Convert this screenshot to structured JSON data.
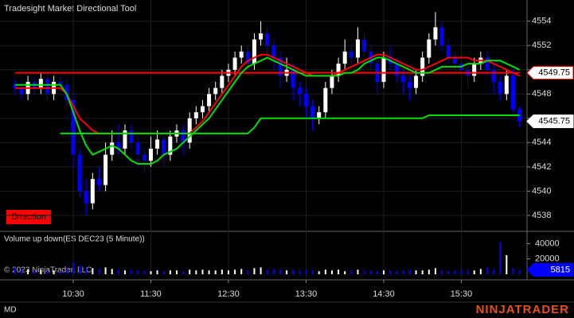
{
  "chart_data": {
    "type": "candlestick",
    "title": "Tradesight Market Directional Tool",
    "badge": "Direction",
    "volume_title": "Volume up down(ES DEC23 (5 Minute))",
    "copyright": "© 2023 NinjaTrader, LLC",
    "footer_left": "MD",
    "brand": "NINJATRADER",
    "up_color": "#ffffff",
    "down_color": "#0000ff",
    "x": [
      585,
      590,
      595,
      600,
      605,
      610,
      615,
      620,
      625,
      630,
      635,
      640,
      645,
      650,
      655,
      660,
      665,
      670,
      675,
      680,
      685,
      690,
      695,
      700,
      705,
      710,
      715,
      720,
      725,
      730,
      735,
      740,
      745,
      750,
      755,
      760,
      765,
      770,
      775,
      780,
      785,
      790,
      795,
      800,
      805,
      810,
      815,
      820,
      825,
      830,
      835,
      840,
      845,
      850,
      855,
      860,
      865,
      870,
      875,
      880,
      885,
      890,
      895,
      900,
      905,
      910,
      915,
      920,
      925,
      930,
      935,
      940,
      945,
      950,
      955,
      960,
      965,
      970,
      975
    ],
    "open": [
      4548.75,
      4548.5,
      4548,
      4549,
      4548.5,
      4549.25,
      4548,
      4549,
      4548.75,
      4547.5,
      4543,
      4540,
      4539,
      4541,
      4540.5,
      4543,
      4544,
      4543.5,
      4545,
      4544,
      4543,
      4542.5,
      4543.5,
      4544.25,
      4543,
      4544.5,
      4545,
      4544,
      4546,
      4546.5,
      4547,
      4548,
      4548.5,
      4549.5,
      4550,
      4551,
      4551.5,
      4550.5,
      4552.5,
      4553,
      4552,
      4551,
      4549.5,
      4550,
      4548.5,
      4548,
      4547,
      4546,
      4546.5,
      4548.5,
      4549.5,
      4550.5,
      4551.5,
      4551,
      4552.5,
      4551.5,
      4550.5,
      4549,
      4551,
      4550.5,
      4549.5,
      4549,
      4548.5,
      4549.5,
      4551,
      4552.5,
      4553.5,
      4552,
      4551,
      4550.5,
      4550,
      4549.5,
      4550.5,
      4551,
      4550,
      4549,
      4548,
      4549.5,
      4546.75
    ],
    "high": [
      4549.25,
      4549,
      4549.5,
      4549.5,
      4549.75,
      4549.75,
      4549.5,
      4549.5,
      4549.25,
      4548,
      4543.5,
      4541,
      4541.5,
      4542,
      4544,
      4545,
      4545.5,
      4545.5,
      4545.5,
      4544.5,
      4543.5,
      4544.5,
      4545,
      4544.5,
      4545,
      4545.5,
      4545.5,
      4546.5,
      4547,
      4547.5,
      4548.5,
      4549,
      4550,
      4550.5,
      4551.5,
      4552,
      4552,
      4553,
      4554,
      4553.5,
      4552.5,
      4551.5,
      4551,
      4550.5,
      4549,
      4548.5,
      4547.5,
      4547,
      4549,
      4550,
      4551,
      4552.5,
      4552,
      4553.5,
      4553,
      4552,
      4551,
      4551.5,
      4552,
      4551,
      4550,
      4549.5,
      4550,
      4551.5,
      4553,
      4554.75,
      4554,
      4552.5,
      4551.5,
      4551,
      4550.5,
      4551,
      4551.5,
      4551.5,
      4550.5,
      4549.5,
      4550,
      4550,
      4547
    ],
    "low": [
      4548,
      4547.5,
      4547.5,
      4548,
      4548,
      4547.5,
      4547.5,
      4548.25,
      4547,
      4542,
      4539.5,
      4538,
      4538.5,
      4540,
      4540,
      4542.5,
      4543,
      4543,
      4543.5,
      4542,
      4541.5,
      4542,
      4543,
      4542,
      4542.5,
      4544,
      4543,
      4543.5,
      4545.5,
      4546,
      4546.5,
      4547.5,
      4548,
      4549,
      4549.5,
      4550.5,
      4550,
      4550,
      4552,
      4551,
      4550,
      4548.5,
      4549,
      4547.5,
      4547,
      4546,
      4545,
      4545.5,
      4546,
      4548,
      4549,
      4550,
      4550.5,
      4550.5,
      4551,
      4550,
      4548,
      4548.5,
      4550,
      4549,
      4548,
      4547.5,
      4548,
      4549,
      4550.5,
      4552,
      4551.5,
      4550.5,
      4550,
      4549.5,
      4548.5,
      4549,
      4550,
      4549.5,
      4548,
      4547.5,
      4547.5,
      4546.5,
      4545.25
    ],
    "close": [
      4548.5,
      4548,
      4549,
      4548.5,
      4549.25,
      4548,
      4549,
      4548.75,
      4547.5,
      4543,
      4540,
      4539,
      4541,
      4540.5,
      4543,
      4544,
      4543.5,
      4545,
      4544,
      4543,
      4542.5,
      4543.5,
      4544.25,
      4543,
      4544.5,
      4545,
      4544,
      4546,
      4546.5,
      4547,
      4548,
      4548.5,
      4549.5,
      4550,
      4551,
      4551.5,
      4550.5,
      4552.5,
      4553,
      4552,
      4551,
      4549.5,
      4550,
      4548.5,
      4548,
      4547,
      4546,
      4546.5,
      4548.5,
      4549.5,
      4550.5,
      4551.5,
      4551,
      4552.5,
      4551.5,
      4550.5,
      4549,
      4551,
      4550.5,
      4549.5,
      4549,
      4548.5,
      4549.5,
      4551,
      4552.5,
      4553.5,
      4552,
      4551,
      4550.5,
      4550,
      4549.5,
      4550.5,
      4551,
      4550,
      4549,
      4548,
      4549.5,
      4546.75,
      4545.75
    ],
    "volume": [
      9000,
      7000,
      6000,
      5000,
      6000,
      5000,
      5000,
      4000,
      8000,
      15000,
      12000,
      9000,
      8000,
      7000,
      9000,
      7000,
      6000,
      5000,
      6000,
      5000,
      5000,
      4000,
      5000,
      4000,
      5000,
      5000,
      4000,
      6000,
      5000,
      6000,
      5000,
      5000,
      6000,
      5000,
      6000,
      7000,
      5000,
      8000,
      9000,
      6000,
      7000,
      6000,
      5000,
      6000,
      5000,
      6000,
      5000,
      4000,
      6000,
      5000,
      6000,
      4000,
      5000,
      6000,
      5000,
      5000,
      4000,
      5000,
      5000,
      4000,
      5000,
      6000,
      5000,
      5000,
      6000,
      8000,
      5000,
      4000,
      5000,
      6000,
      5000,
      5000,
      7000,
      9000,
      6000,
      42000,
      25000,
      8000,
      5815
    ],
    "series": [
      {
        "color": "#ff0000",
        "values": [
          4548.5,
          4548.5,
          4548.5,
          4548.5,
          4548.5,
          4548.5,
          4548.5,
          4548.5,
          4548,
          4547,
          4546,
          4545.5,
          4545,
          4544.75,
          4544.75,
          4544.75,
          4544.75,
          4544.75,
          4544.75,
          4544.75,
          4544.75,
          4544.75,
          4544.75,
          4544.75,
          4544.75,
          4544.75,
          4544.75,
          4544.75,
          4545.25,
          4545.75,
          4546.5,
          4547.25,
          4548,
          4548.75,
          4549.5,
          4550.25,
          4550.75,
          4551,
          4551.25,
          4551.25,
          4551,
          4550.75,
          4550.5,
          4550.25,
          4550,
          4549.75,
          4549.5,
          4549.5,
          4549.5,
          4549.5,
          4549.75,
          4550,
          4550.25,
          4550.5,
          4550.75,
          4551,
          4551.25,
          4551.25,
          4551,
          4550.75,
          4550.5,
          4550.25,
          4550,
          4550,
          4550.25,
          4550.5,
          4550.75,
          4551,
          4551,
          4551,
          4551,
          4550.75,
          4550.75,
          4550.75,
          4550.5,
          4550.25,
          4550,
          4549.75,
          4549.5
        ]
      },
      {
        "color": "#00e000",
        "values": [
          4548.75,
          4548.75,
          4548.75,
          4548.75,
          4548.75,
          4548.75,
          4548.75,
          4548.75,
          4548,
          4546.5,
          4545,
          4543.75,
          4543,
          4543.25,
          4543.5,
          4543.75,
          4543.5,
          4543,
          4542.5,
          4542.25,
          4542.25,
          4542.25,
          4542.5,
          4543,
          4543.25,
          4543.5,
          4544,
          4544.5,
          4545,
          4545.5,
          4546,
          4546.75,
          4547.5,
          4548.25,
          4549,
          4549.75,
          4550.25,
          4550.5,
          4550.75,
          4551,
          4550.75,
          4550.5,
          4550.25,
          4550,
          4549.75,
          4549.5,
          4549.5,
          4549.5,
          4549.5,
          4549.5,
          4549.5,
          4549.75,
          4549.75,
          4550,
          4550.5,
          4550.75,
          4551,
          4551,
          4550.75,
          4550.5,
          4550.25,
          4550,
          4549.75,
          4549.75,
          4549.75,
          4550,
          4550.25,
          4550.25,
          4550.25,
          4550.25,
          4550.5,
          4550.5,
          4550.5,
          4550.75,
          4550.75,
          4550.75,
          4550.5,
          4550.25,
          4550
        ]
      },
      {
        "color": "#00e000",
        "values": [
          null,
          null,
          null,
          null,
          null,
          null,
          null,
          4544.75,
          4544.75,
          4544.75,
          4544.75,
          4544.75,
          4544.75,
          4544.75,
          4544.75,
          4544.75,
          4544.75,
          4544.75,
          4544.75,
          4544.75,
          4544.75,
          4544.75,
          4544.75,
          4544.75,
          4544.75,
          4544.75,
          4544.75,
          4544.75,
          4544.75,
          4544.75,
          4544.75,
          4544.75,
          4544.75,
          4544.75,
          4544.75,
          4544.75,
          4544.75,
          4545.25,
          4546,
          4546,
          4546,
          4546,
          4546,
          4546,
          4546,
          4546,
          4546,
          4546,
          4546,
          4546,
          4546,
          4546,
          4546,
          4546,
          4546,
          4546,
          4546,
          4546,
          4546,
          4546,
          4546,
          4546,
          4546,
          4546,
          4546.25,
          4546.25,
          4546.25,
          4546.25,
          4546.25,
          4546.25,
          4546.25,
          4546.25,
          4546.25,
          4546.25,
          4546.25,
          4546.25,
          4546.25,
          4546.25,
          4546.25
        ]
      }
    ],
    "level": {
      "value": 4549.75,
      "label": "4549.75",
      "color": "#ff0000"
    },
    "xlim": [
      573.4,
      980.8
    ],
    "xticks": [
      {
        "value": 630,
        "label": "10:30"
      },
      {
        "value": 690,
        "label": "11:30"
      },
      {
        "value": 750,
        "label": "12:30"
      },
      {
        "value": 810,
        "label": "13:30"
      },
      {
        "value": 870,
        "label": "14:30"
      },
      {
        "value": 930,
        "label": "15:30"
      }
    ],
    "ylim": [
      4536.75,
      4555.75
    ],
    "yticks": [
      4538,
      4540,
      4542,
      4544,
      4546,
      4548,
      4550,
      4552,
      4554
    ],
    "volume_ylim": [
      0,
      55000
    ],
    "volume_yticks": [
      20000,
      40000
    ],
    "grid": true
  }
}
